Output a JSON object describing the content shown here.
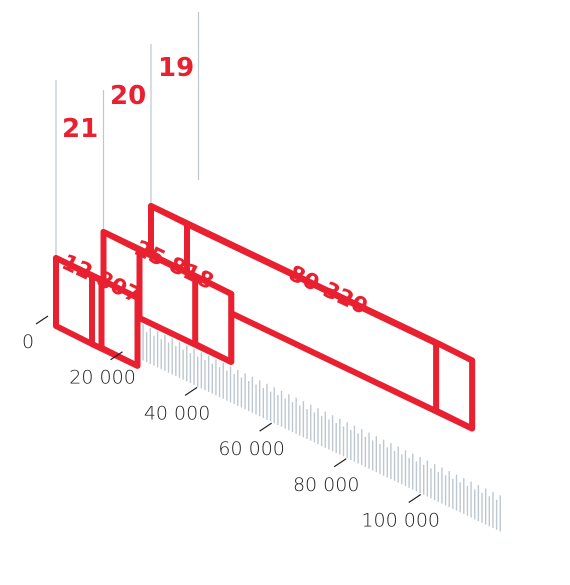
{
  "colors": {
    "accent": "#e8202f",
    "guide": "#bcc7cf",
    "text": "#222222"
  },
  "chart_data": {
    "type": "bar",
    "title": "",
    "xlabel": "",
    "ylabel": "",
    "xlim": [
      0,
      100000
    ],
    "tick_values": [
      0,
      20000,
      40000,
      60000,
      80000,
      100000
    ],
    "tick_labels": [
      "0",
      "20 000",
      "40 000",
      "60 000",
      "80 000",
      "100 000"
    ],
    "categories": [
      "21",
      "20",
      "19"
    ],
    "values": [
      12807,
      25818,
      80320
    ],
    "value_labels": [
      "12 807",
      "25 818",
      "80 320"
    ],
    "grid": true,
    "legend": "none"
  }
}
